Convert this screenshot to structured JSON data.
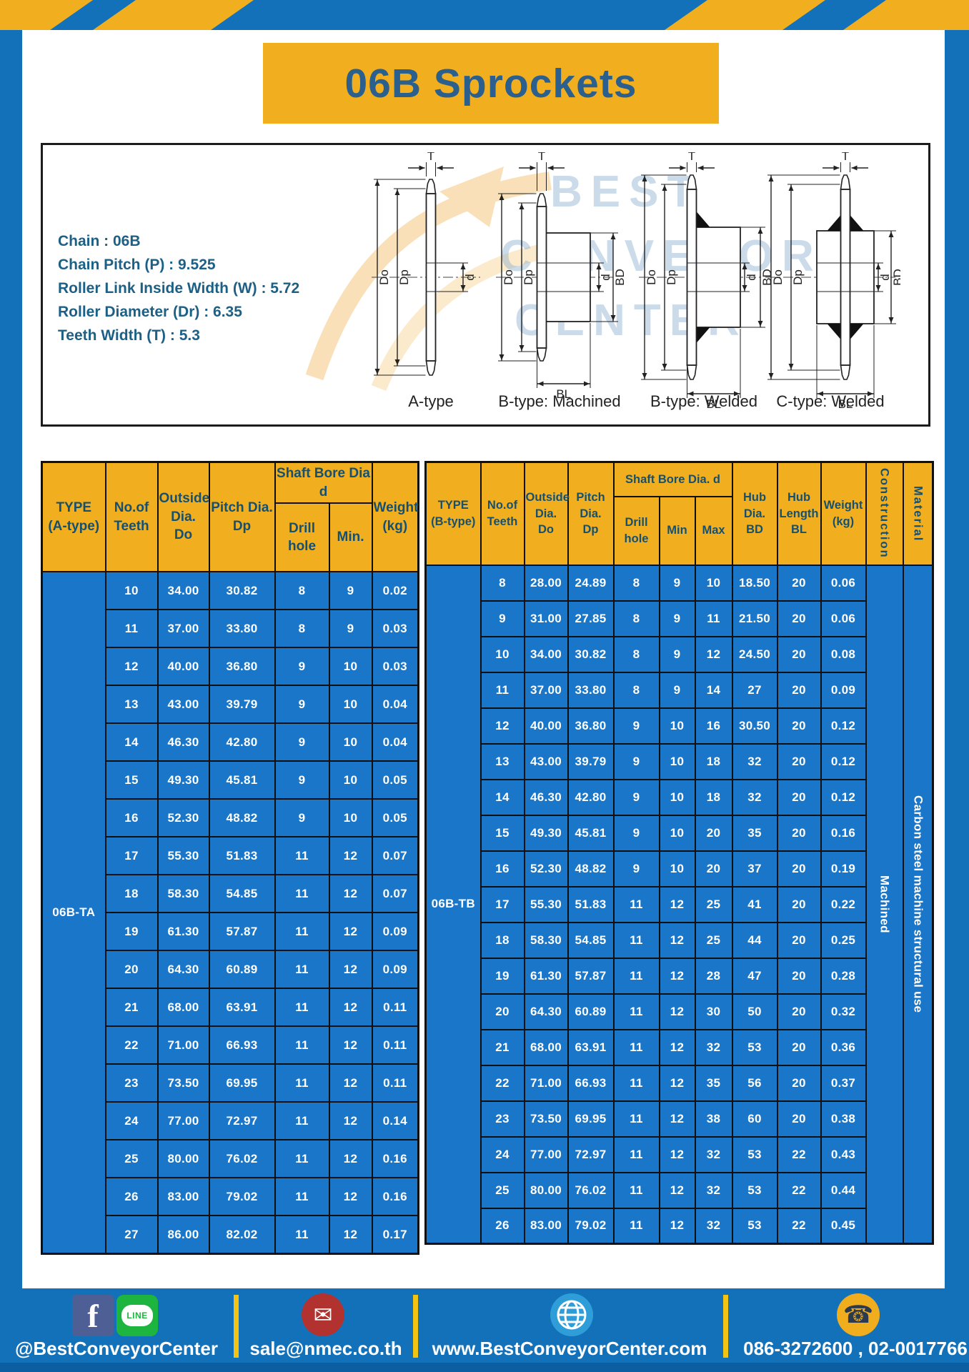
{
  "page": {
    "title": "06B Sprockets"
  },
  "specs": {
    "lines": [
      "Chain : 06B",
      "Chain Pitch (P) : 9.525",
      "Roller Link Inside Width (W) : 5.72",
      "Roller Diameter (Dr) : 6.35",
      "Teeth Width (T) : 5.3"
    ]
  },
  "diagram": {
    "captions": [
      "A-type",
      "B-type: Machined",
      "B-type: Welded",
      "C-type: Welded"
    ],
    "dims": {
      "t": "T",
      "do": "Do",
      "dp": "Dp",
      "d": "d",
      "bd": "BD",
      "bl": "BL"
    },
    "watermark": [
      "BEST",
      "CONVEYOR",
      "CENTER"
    ]
  },
  "table_a": {
    "headers": {
      "type": "TYPE\n(A-type)",
      "teeth": "No.of\nTeeth",
      "outside": "Outside\nDia.\nDo",
      "pitch": "Pitch Dia.\nDp",
      "shaft_bore": "Shaft Bore Dia d",
      "drill": "Drill hole",
      "min": "Min.",
      "weight": "Weight\n(kg)"
    },
    "type_label": "06B-TA",
    "rows": [
      [
        "10",
        "34.00",
        "30.82",
        "8",
        "9",
        "0.02"
      ],
      [
        "11",
        "37.00",
        "33.80",
        "8",
        "9",
        "0.03"
      ],
      [
        "12",
        "40.00",
        "36.80",
        "9",
        "10",
        "0.03"
      ],
      [
        "13",
        "43.00",
        "39.79",
        "9",
        "10",
        "0.04"
      ],
      [
        "14",
        "46.30",
        "42.80",
        "9",
        "10",
        "0.04"
      ],
      [
        "15",
        "49.30",
        "45.81",
        "9",
        "10",
        "0.05"
      ],
      [
        "16",
        "52.30",
        "48.82",
        "9",
        "10",
        "0.05"
      ],
      [
        "17",
        "55.30",
        "51.83",
        "11",
        "12",
        "0.07"
      ],
      [
        "18",
        "58.30",
        "54.85",
        "11",
        "12",
        "0.07"
      ],
      [
        "19",
        "61.30",
        "57.87",
        "11",
        "12",
        "0.09"
      ],
      [
        "20",
        "64.30",
        "60.89",
        "11",
        "12",
        "0.09"
      ],
      [
        "21",
        "68.00",
        "63.91",
        "11",
        "12",
        "0.11"
      ],
      [
        "22",
        "71.00",
        "66.93",
        "11",
        "12",
        "0.11"
      ],
      [
        "23",
        "73.50",
        "69.95",
        "11",
        "12",
        "0.11"
      ],
      [
        "24",
        "77.00",
        "72.97",
        "11",
        "12",
        "0.14"
      ],
      [
        "25",
        "80.00",
        "76.02",
        "11",
        "12",
        "0.16"
      ],
      [
        "26",
        "83.00",
        "79.02",
        "11",
        "12",
        "0.16"
      ],
      [
        "27",
        "86.00",
        "82.02",
        "11",
        "12",
        "0.17"
      ]
    ]
  },
  "table_b": {
    "headers": {
      "type": "TYPE\n(B-type)",
      "teeth": "No.of\nTeeth",
      "outside": "Outside\nDia.\nDo",
      "pitch": "Pitch\nDia.\nDp",
      "shaft_bore": "Shaft Bore Dia. d",
      "drill": "Drill hole",
      "min": "Min",
      "max": "Max",
      "hub_dia": "Hub\nDia.\nBD",
      "hub_length": "Hub\nLength\nBL",
      "weight": "Weight\n(kg)",
      "construction": "Construction",
      "material": "Material"
    },
    "type_label": "06B-TB",
    "construction_value": "Machined",
    "material_value": "Carbon steel machine structural use",
    "rows": [
      [
        "8",
        "28.00",
        "24.89",
        "8",
        "9",
        "10",
        "18.50",
        "20",
        "0.06"
      ],
      [
        "9",
        "31.00",
        "27.85",
        "8",
        "9",
        "11",
        "21.50",
        "20",
        "0.06"
      ],
      [
        "10",
        "34.00",
        "30.82",
        "8",
        "9",
        "12",
        "24.50",
        "20",
        "0.08"
      ],
      [
        "11",
        "37.00",
        "33.80",
        "8",
        "9",
        "14",
        "27",
        "20",
        "0.09"
      ],
      [
        "12",
        "40.00",
        "36.80",
        "9",
        "10",
        "16",
        "30.50",
        "20",
        "0.12"
      ],
      [
        "13",
        "43.00",
        "39.79",
        "9",
        "10",
        "18",
        "32",
        "20",
        "0.12"
      ],
      [
        "14",
        "46.30",
        "42.80",
        "9",
        "10",
        "18",
        "32",
        "20",
        "0.12"
      ],
      [
        "15",
        "49.30",
        "45.81",
        "9",
        "10",
        "20",
        "35",
        "20",
        "0.16"
      ],
      [
        "16",
        "52.30",
        "48.82",
        "9",
        "10",
        "20",
        "37",
        "20",
        "0.19"
      ],
      [
        "17",
        "55.30",
        "51.83",
        "11",
        "12",
        "25",
        "41",
        "20",
        "0.22"
      ],
      [
        "18",
        "58.30",
        "54.85",
        "11",
        "12",
        "25",
        "44",
        "20",
        "0.25"
      ],
      [
        "19",
        "61.30",
        "57.87",
        "11",
        "12",
        "28",
        "47",
        "20",
        "0.28"
      ],
      [
        "20",
        "64.30",
        "60.89",
        "11",
        "12",
        "30",
        "50",
        "20",
        "0.32"
      ],
      [
        "21",
        "68.00",
        "63.91",
        "11",
        "12",
        "32",
        "53",
        "20",
        "0.36"
      ],
      [
        "22",
        "71.00",
        "66.93",
        "11",
        "12",
        "35",
        "56",
        "20",
        "0.37"
      ],
      [
        "23",
        "73.50",
        "69.95",
        "11",
        "12",
        "38",
        "60",
        "20",
        "0.38"
      ],
      [
        "24",
        "77.00",
        "72.97",
        "11",
        "12",
        "32",
        "53",
        "22",
        "0.43"
      ],
      [
        "25",
        "80.00",
        "76.02",
        "11",
        "12",
        "32",
        "53",
        "22",
        "0.44"
      ],
      [
        "26",
        "83.00",
        "79.02",
        "11",
        "12",
        "32",
        "53",
        "22",
        "0.45"
      ]
    ]
  },
  "footer": {
    "social": "@BestConveyorCenter",
    "email": "sale@nmec.co.th",
    "website": "www.BestConveyorCenter.com",
    "phone": "086-3272600 , 02-0017766",
    "facebook_letter": "f",
    "line_label": "LINE"
  }
}
